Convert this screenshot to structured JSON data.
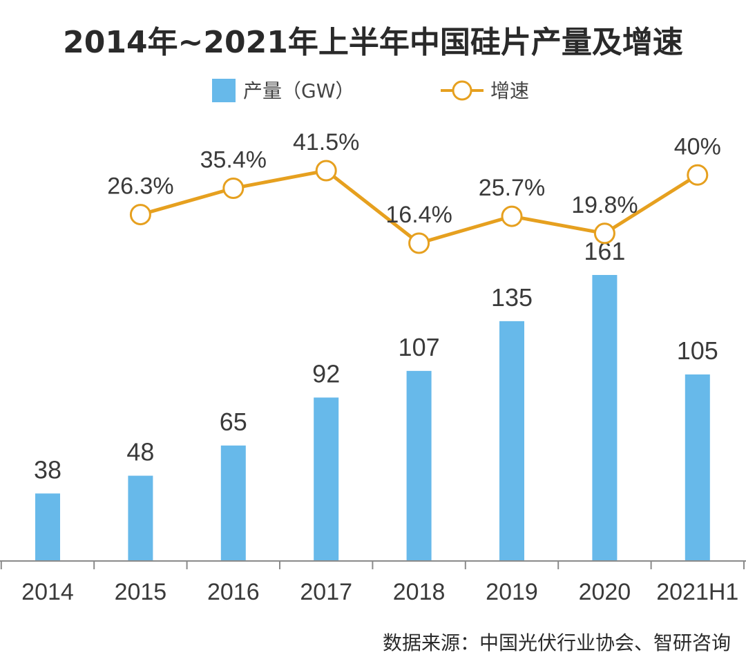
{
  "chart_data": {
    "type": "bar",
    "title": "2014年~2021年上半年中国硅片产量及增速",
    "categories": [
      "2014",
      "2015",
      "2016",
      "2017",
      "2018",
      "2019",
      "2020",
      "2021H1"
    ],
    "series": [
      {
        "name": "产量（GW）",
        "type": "bar",
        "values": [
          38,
          48,
          65,
          92,
          107,
          135,
          161,
          105
        ],
        "labels": [
          "38",
          "48",
          "65",
          "92",
          "107",
          "135",
          "161",
          "105"
        ],
        "color": "#67b9ea"
      },
      {
        "name": "增速",
        "type": "line",
        "x": [
          "2015",
          "2016",
          "2017",
          "2018",
          "2019",
          "2020",
          "2021H1"
        ],
        "values": [
          26.3,
          35.4,
          41.5,
          16.4,
          25.7,
          19.8,
          40
        ],
        "labels": [
          "26.3%",
          "35.4%",
          "41.5%",
          "16.4%",
          "25.7%",
          "19.8%",
          "40%"
        ],
        "color": "#e6a01f"
      }
    ],
    "ylim": [
      0,
      170
    ],
    "grid": false,
    "legend_position": "top-center",
    "source": "数据来源：中国光伏行业协会、智研咨询"
  }
}
